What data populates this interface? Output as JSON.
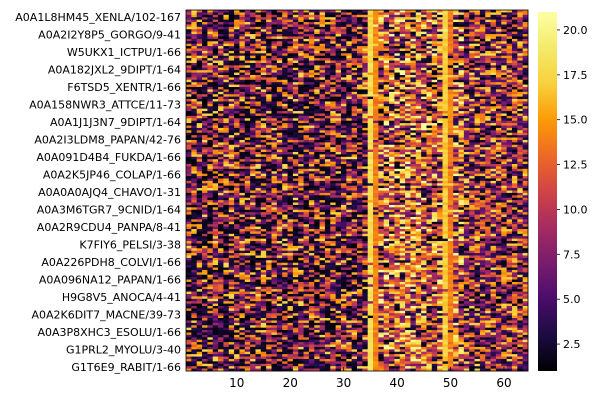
{
  "chart_data": {
    "type": "heatmap",
    "title": "",
    "xlabel": "",
    "ylabel": "",
    "n_rows": 150,
    "n_cols": 64,
    "x_ticks": [
      10,
      20,
      30,
      40,
      50,
      60
    ],
    "y_tick_labels": [
      "A0A1L8HM45_XENLA/102-167",
      "A0A2I2Y8P5_GORGO/9-41",
      "W5UKX1_ICTPU/1-66",
      "A0A182JXL2_9DIPT/1-64",
      "F6TSD5_XENTR/1-66",
      "A0A158NWR3_ATTCE/11-73",
      "A0A1J1J3N7_9DIPT/1-64",
      "A0A2I3LDM8_PAPAN/42-76",
      "A0A091D4B4_FUKDA/1-66",
      "A0A2K5JP46_COLAP/1-66",
      "A0A0A0AJQ4_CHAVO/1-31",
      "A0A3M6TGR7_9CNID/1-64",
      "A0A2R9CDU4_PANPA/8-41",
      "K7FIY6_PELSI/3-38",
      "A0A226PDH8_COLVI/1-66",
      "A0A096NA12_PAPAN/1-66",
      "H9G8V5_ANOCA/4-41",
      "A0A2K6DIT7_MACNE/39-73",
      "A0A3P8XHC3_ESOLU/1-66",
      "G1PRL2_MYOLU/3-40",
      "G1T6E9_RABIT/1-66"
    ],
    "colorbar": {
      "colormap": "inferno",
      "range": [
        1,
        21
      ],
      "ticks": [
        2.5,
        5.0,
        7.5,
        10.0,
        12.5,
        15.0,
        17.5,
        20.0
      ],
      "tick_labels": [
        "2.5",
        "5.0",
        "7.5",
        "10.0",
        "12.5",
        "15.0",
        "17.5",
        "20.0"
      ]
    },
    "column_profile": [
      {
        "col": 35,
        "note": "nearly constant column",
        "value": 18
      },
      {
        "col": 36,
        "note": "nearly constant column",
        "value": 14
      },
      {
        "col": 49,
        "note": "nearly constant column",
        "value": 17
      },
      {
        "col": 50,
        "note": "nearly constant column",
        "value": 14
      }
    ]
  }
}
